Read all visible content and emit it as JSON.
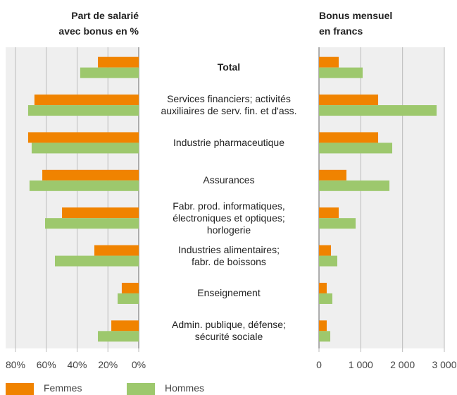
{
  "chart_data": {
    "type": "bar",
    "categories": [
      "Total",
      "Services financiers; activités\nauxiliaires de serv. fin. et d'ass.",
      "Industrie pharmaceutique",
      "Assurances",
      "Fabr. prod. informatiques,\nélectroniques et optiques;\nhorlogerie",
      "Industries alimentaires;\nfabr. de boissons",
      "Enseignement",
      "Admin. publique, défense;\nsécurité sociale"
    ],
    "panels": [
      {
        "title": "Part de salarié\navec bonus en %",
        "reversed": true,
        "xlim": [
          0,
          80
        ],
        "xticks": [
          {
            "value": 80,
            "label": "80%"
          },
          {
            "value": 60,
            "label": "60%"
          },
          {
            "value": 40,
            "label": "40%"
          },
          {
            "value": 20,
            "label": "20%"
          },
          {
            "value": 0,
            "label": "0%"
          }
        ],
        "series": [
          {
            "name": "Femmes",
            "color": "#f08300",
            "values": [
              26.5,
              67.7,
              71.8,
              62.6,
              49.8,
              28.8,
              11,
              17.8
            ]
          },
          {
            "name": "Hommes",
            "color": "#9dc86d",
            "values": [
              38,
              71.8,
              69.5,
              70.9,
              60.8,
              54.4,
              13.7,
              26.5
            ]
          }
        ]
      },
      {
        "title": "Bonus mensuel\nen francs",
        "reversed": false,
        "xlim": [
          0,
          3000
        ],
        "xticks": [
          0,
          {
            "value": 1000,
            "label": "1 000"
          },
          {
            "value": 2000,
            "label": "2 000"
          },
          {
            "value": 3000,
            "label": "3 000"
          }
        ],
        "series": [
          {
            "name": "Femmes",
            "color": "#f08300",
            "values": [
              472,
              1416,
              1416,
              657,
              472,
              287,
              185,
              185
            ]
          },
          {
            "name": "Hommes",
            "color": "#9dc86d",
            "values": [
              1045,
              2815,
              1753,
              1686,
              877,
              438,
              320,
              270
            ]
          }
        ]
      }
    ]
  }
}
